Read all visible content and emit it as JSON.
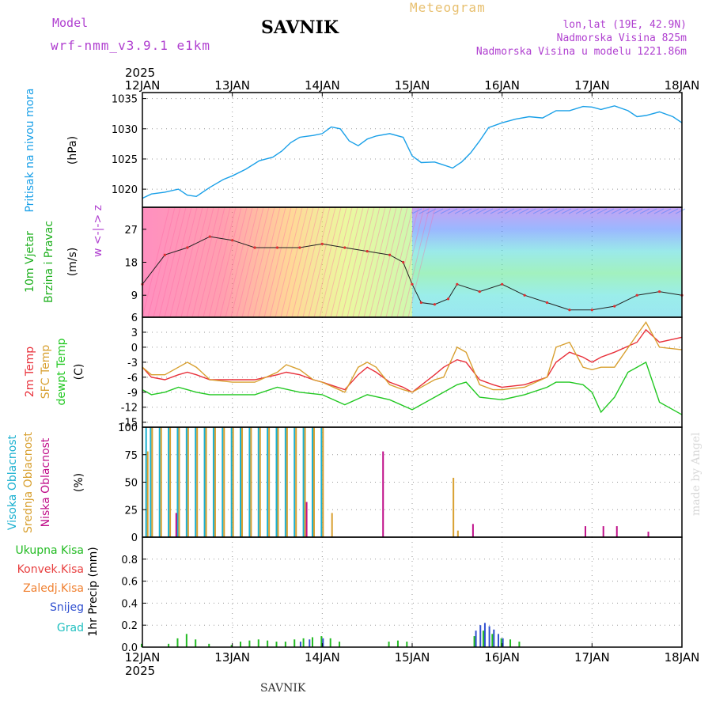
{
  "header": {
    "model_label": "Model",
    "model_name": "wrf-nmm_v3.9.1 e1km",
    "station": "SAVNIK",
    "chart_type": "Meteogram",
    "coords": "lon,lat (19E, 42.9N)",
    "elevation": "Nadmorska Visina 825m",
    "model_elevation": "Nadmorska Visina u modelu 1221.86m",
    "footer_station": "SAVNIK",
    "watermark": "made by Angel"
  },
  "colors": {
    "pressure": "#1aa0e8",
    "temp2m": "#e8303a",
    "sfc": "#d8a030",
    "dewpt": "#22c822",
    "high_cloud": "#1ab0d0",
    "mid_cloud": "#d8a030",
    "low_cloud": "#c0108a",
    "total_precip": "#22bb22",
    "convective": "#e84040",
    "freezing": "#f08030",
    "snow": "#3050d0",
    "hail": "#20c0c0",
    "model_text": "#b040d0",
    "meteogram_text": "#e8c070"
  },
  "chart_data": {
    "type": "meteogram",
    "year": "2025",
    "x_ticks": [
      "12JAN",
      "13JAN",
      "14JAN",
      "15JAN",
      "16JAN",
      "17JAN",
      "18JAN"
    ],
    "panels": [
      {
        "id": "pressure",
        "type": "line",
        "ylabels": [
          "Pritisak na nivou mora",
          "(hPa)"
        ],
        "ylim": [
          1017,
          1036
        ],
        "yticks": [
          1020,
          1025,
          1030,
          1035
        ],
        "series": [
          {
            "color_key": "pressure",
            "x": [
              0,
              0.1,
              0.25,
              0.4,
              0.5,
              0.6,
              0.75,
              0.9,
              1.0,
              1.15,
              1.3,
              1.45,
              1.55,
              1.65,
              1.75,
              1.85,
              1.9,
              2.0,
              2.1,
              2.2,
              2.25,
              2.3,
              2.4,
              2.5,
              2.6,
              2.75,
              2.9,
              3.0,
              3.1,
              3.25,
              3.35,
              3.45,
              3.5,
              3.55,
              3.65,
              3.75,
              3.85,
              4.0,
              4.15,
              4.3,
              4.45,
              4.6,
              4.75,
              4.9,
              5.0,
              5.1,
              5.25,
              5.4,
              5.5,
              5.6,
              5.75,
              5.9,
              6.0
            ],
            "y": [
              1018.5,
              1019.2,
              1019.5,
              1020.0,
              1019.0,
              1018.8,
              1020.3,
              1021.6,
              1022.2,
              1023.3,
              1024.7,
              1025.3,
              1026.3,
              1027.7,
              1028.6,
              1028.8,
              1028.9,
              1029.2,
              1030.3,
              1030.0,
              1029.0,
              1028.0,
              1027.2,
              1028.3,
              1028.8,
              1029.2,
              1028.6,
              1025.5,
              1024.4,
              1024.5,
              1024.0,
              1023.5,
              1024.0,
              1024.5,
              1026.0,
              1028.0,
              1030.2,
              1031.0,
              1031.6,
              1032.0,
              1031.8,
              1033.0,
              1033.0,
              1033.7,
              1033.6,
              1033.2,
              1033.8,
              1033.0,
              1032.0,
              1032.2,
              1032.8,
              1032.0,
              1031.0
            ]
          }
        ]
      },
      {
        "id": "wind",
        "type": "wind",
        "ylabels": [
          "10m Vjetar",
          "Brzina i Pravac",
          "(m/s)"
        ],
        "compass": "w <-|-> z",
        "ylim": [
          3,
          33
        ],
        "yticks": [
          9,
          18,
          27
        ],
        "series": [
          {
            "name": "speed",
            "x": [
              0,
              0.25,
              0.5,
              0.75,
              1.0,
              1.25,
              1.5,
              1.75,
              2.0,
              2.25,
              2.5,
              2.75,
              2.9,
              3.0,
              3.1,
              3.25,
              3.4,
              3.5,
              3.75,
              4.0,
              4.25,
              4.5,
              4.75,
              5.0,
              5.25,
              5.5,
              5.75,
              6.0
            ],
            "y": [
              12,
              20,
              22,
              25,
              24,
              22,
              22,
              22,
              23,
              22,
              21,
              20,
              18,
              12,
              7,
              6.5,
              8,
              12,
              10,
              12,
              9,
              7,
              5,
              5,
              6,
              9,
              10,
              9
            ]
          }
        ]
      },
      {
        "id": "temperature",
        "type": "line",
        "ylabels": [
          "2m Temp",
          "SFC Temp",
          "dewpt Temp",
          "(C)"
        ],
        "ylim": [
          -16,
          6
        ],
        "yticks": [
          -15,
          -12,
          -9,
          -6,
          -3,
          0,
          3,
          6
        ],
        "series": [
          {
            "color_key": "temp2m",
            "x": [
              0,
              0.1,
              0.25,
              0.4,
              0.5,
              0.6,
              0.75,
              1.0,
              1.25,
              1.5,
              1.6,
              1.75,
              1.9,
              2.0,
              2.25,
              2.4,
              2.5,
              2.6,
              2.75,
              2.9,
              3.0,
              3.25,
              3.35,
              3.5,
              3.6,
              3.75,
              3.9,
              4.0,
              4.25,
              4.5,
              4.6,
              4.75,
              4.9,
              5.0,
              5.1,
              5.25,
              5.5,
              5.6,
              5.75,
              6.0
            ],
            "y": [
              -4,
              -6,
              -6.5,
              -5.5,
              -5,
              -5.5,
              -6.5,
              -6.5,
              -6.5,
              -5.5,
              -5,
              -5.5,
              -6.5,
              -7,
              -8.5,
              -5.5,
              -4,
              -5,
              -7,
              -8,
              -9,
              -5.5,
              -4,
              -2.5,
              -3,
              -6.5,
              -7.5,
              -8,
              -7.5,
              -6,
              -3,
              -1,
              -2,
              -3,
              -2,
              -1,
              1,
              3.5,
              1,
              2
            ]
          },
          {
            "color_key": "sfc",
            "x": [
              0,
              0.1,
              0.25,
              0.4,
              0.5,
              0.6,
              0.75,
              1.0,
              1.25,
              1.5,
              1.6,
              1.75,
              1.9,
              2.0,
              2.25,
              2.4,
              2.5,
              2.6,
              2.75,
              2.9,
              3.0,
              3.25,
              3.35,
              3.5,
              3.6,
              3.75,
              3.9,
              4.0,
              4.25,
              4.5,
              4.6,
              4.75,
              4.9,
              5.0,
              5.1,
              5.25,
              5.5,
              5.6,
              5.75,
              6.0
            ],
            "y": [
              -4,
              -5.5,
              -5.5,
              -4,
              -3,
              -4,
              -6.5,
              -7,
              -7,
              -5,
              -3.5,
              -4.5,
              -6.5,
              -7,
              -9,
              -4,
              -3,
              -4,
              -7.5,
              -8.5,
              -9,
              -6.5,
              -6,
              0,
              -1,
              -7.5,
              -8.5,
              -8.5,
              -8,
              -6,
              0,
              1,
              -4,
              -4.5,
              -4,
              -4,
              2.5,
              5,
              0,
              -0.5
            ]
          },
          {
            "color_key": "dewpt",
            "x": [
              0,
              0.1,
              0.25,
              0.4,
              0.5,
              0.6,
              0.75,
              1.0,
              1.25,
              1.5,
              1.75,
              2.0,
              2.25,
              2.5,
              2.75,
              3.0,
              3.25,
              3.5,
              3.6,
              3.75,
              4.0,
              4.25,
              4.5,
              4.6,
              4.75,
              4.9,
              5.0,
              5.1,
              5.25,
              5.4,
              5.5,
              5.6,
              5.75,
              6.0
            ],
            "y": [
              -8.5,
              -9.5,
              -9,
              -8,
              -8.5,
              -9,
              -9.5,
              -9.5,
              -9.5,
              -8,
              -9,
              -9.5,
              -11.5,
              -9.5,
              -10.5,
              -12.5,
              -10,
              -7.5,
              -7,
              -10,
              -10.5,
              -9.5,
              -8,
              -7,
              -7,
              -7.5,
              -9,
              -13,
              -10,
              -5,
              -4,
              -3,
              -11,
              -13.5
            ]
          }
        ]
      },
      {
        "id": "cloud",
        "type": "bar",
        "ylabels": [
          "Visoka Oblacnost",
          "Srednja Oblacnost",
          "Niska Oblacnost",
          "(%)"
        ],
        "ylim": [
          0,
          100
        ],
        "yticks": [
          0,
          25,
          50,
          75,
          100
        ],
        "overcast_until": 2.1,
        "series": [
          {
            "name": "Visoka Oblacnost",
            "color_key": "high_cloud",
            "x": [
              0.05,
              0.1,
              0.2,
              0.3,
              0.4,
              0.5,
              0.6,
              0.7,
              0.8,
              0.9,
              1.0,
              1.1,
              1.2,
              1.3,
              1.4,
              1.5,
              1.6,
              1.7,
              1.8,
              1.9,
              2.0
            ],
            "y": [
              100,
              100,
              100,
              100,
              100,
              100,
              100,
              100,
              100,
              100,
              100,
              100,
              100,
              100,
              100,
              100,
              100,
              100,
              100,
              100,
              100
            ]
          },
          {
            "name": "Srednja Oblacnost",
            "color_key": "mid_cloud",
            "x": [
              0.05,
              0.1,
              0.2,
              0.3,
              0.4,
              0.5,
              0.6,
              0.7,
              0.8,
              0.9,
              1.0,
              1.1,
              1.2,
              1.3,
              1.4,
              1.5,
              1.6,
              1.7,
              1.8,
              1.9,
              2.0,
              2.1,
              3.45,
              3.5
            ],
            "y": [
              78,
              100,
              100,
              100,
              100,
              100,
              100,
              100,
              100,
              100,
              100,
              100,
              100,
              100,
              100,
              100,
              100,
              100,
              100,
              100,
              100,
              22,
              54,
              6
            ]
          },
          {
            "name": "Niska Oblacnost",
            "color_key": "low_cloud",
            "x": [
              0.35,
              1.8,
              2.65,
              3.65,
              4.9,
              5.1,
              5.25,
              5.6
            ],
            "y": [
              22,
              32,
              78,
              12,
              10,
              10,
              10,
              5
            ]
          }
        ]
      },
      {
        "id": "precip",
        "type": "bar",
        "ylabels": [
          "1hr Precip (mm)"
        ],
        "ylim": [
          0,
          1.0
        ],
        "yticks": [
          0.0,
          0.2,
          0.4,
          0.6,
          0.8
        ],
        "series": [
          {
            "name": "Ukupna Kisa",
            "color_key": "total_precip",
            "x": [
              0.0,
              0.3,
              0.4,
              0.5,
              0.6,
              0.75,
              1.0,
              1.1,
              1.2,
              1.3,
              1.4,
              1.5,
              1.6,
              1.7,
              1.8,
              1.9,
              2.0,
              2.1,
              2.2,
              2.75,
              2.85,
              2.95,
              3.7,
              3.8,
              3.9,
              4.0,
              4.1,
              4.2
            ],
            "y": [
              0.03,
              0.03,
              0.08,
              0.12,
              0.07,
              0.03,
              0.02,
              0.05,
              0.06,
              0.07,
              0.06,
              0.05,
              0.05,
              0.07,
              0.08,
              0.09,
              0.1,
              0.08,
              0.05,
              0.05,
              0.06,
              0.05,
              0.1,
              0.15,
              0.12,
              0.08,
              0.07,
              0.05
            ]
          },
          {
            "name": "Snijeg",
            "color_key": "snow",
            "x": [
              1.75,
              1.85,
              2.0,
              3.7,
              3.75,
              3.8,
              3.85,
              3.9,
              3.95,
              4.0
            ],
            "y": [
              0.05,
              0.07,
              0.08,
              0.15,
              0.2,
              0.22,
              0.19,
              0.16,
              0.12,
              0.08
            ]
          }
        ]
      }
    ],
    "precip_legend": [
      {
        "name": "Ukupna Kisa",
        "color_key": "total_precip"
      },
      {
        "name": "Konvek.Kisa",
        "color_key": "convective"
      },
      {
        "name": "Zaledj.Kisa",
        "color_key": "freezing"
      },
      {
        "name": "Snijeg",
        "color_key": "snow"
      },
      {
        "name": "Grad",
        "color_key": "hail"
      }
    ]
  }
}
